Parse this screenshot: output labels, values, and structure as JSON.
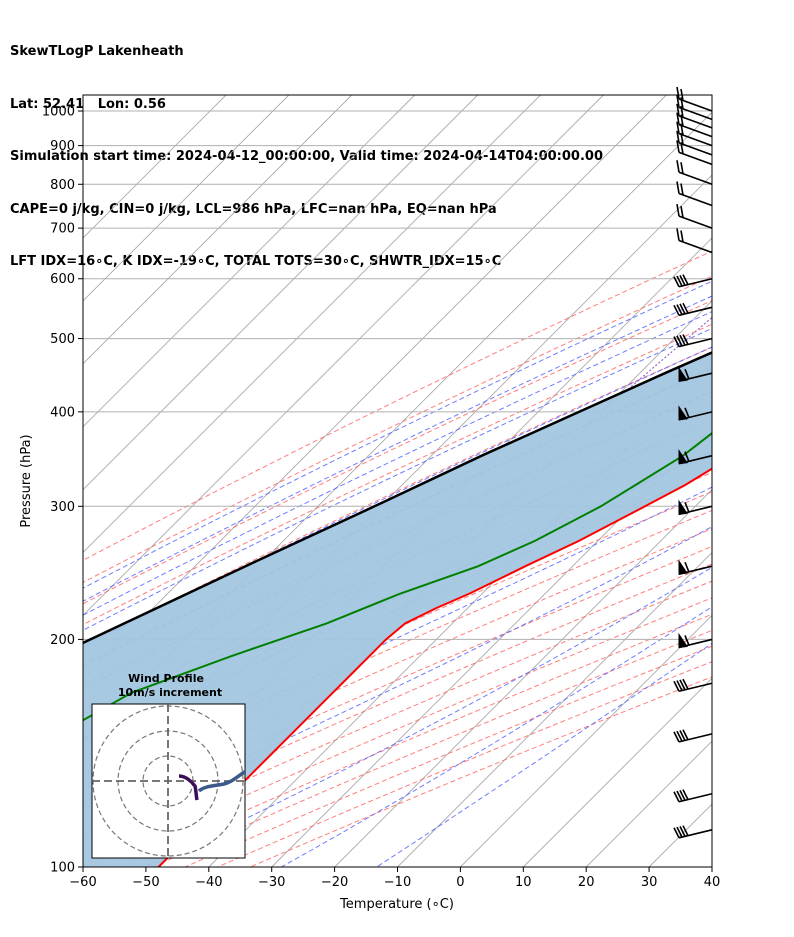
{
  "header": {
    "line1": "SkewTLogP Lakenheath",
    "line2": "Lat: 52.41   Lon: 0.56",
    "line3": "Simulation start time: 2024-04-12_00:00:00, Valid time: 2024-04-14T04:00:00.00",
    "line4": "CAPE=0 j/kg, CIN=0 j/kg, LCL=986 hPa, LFC=nan hPa, EQ=nan hPa",
    "line5": "LFT IDX=16∘C, K IDX=-19∘C, TOTAL TOTS=30∘C, SHWTR_IDX=15∘C"
  },
  "chart_data": {
    "type": "line",
    "title": "SkewTLogP Lakenheath",
    "xlabel": "Temperature (∘C)",
    "ylabel": "Pressure (hPa)",
    "xlim": [
      -60,
      40
    ],
    "ylim": [
      1050,
      100
    ],
    "yscale": "log",
    "x_ticks": [
      "−60",
      "−50",
      "−40",
      "−30",
      "−20",
      "−10",
      "0",
      "10",
      "20",
      "30",
      "40"
    ],
    "y_ticks": [
      "1000",
      "900",
      "800",
      "700",
      "600",
      "500",
      "400",
      "300",
      "200",
      "100"
    ],
    "y_tick_values": [
      1000,
      900,
      800,
      700,
      600,
      500,
      400,
      300,
      200,
      100
    ],
    "grid": true,
    "colors": {
      "temperature": "#ff0000",
      "dewpoint": "#008000",
      "parcel": "#000000",
      "shade": "#a3c6e0",
      "isotherm": "#aaaaaa",
      "dry_adiabat": "#ff6666",
      "moist_adiabat": "#5566ff",
      "mixing_ratio": "#9966cc"
    },
    "series": [
      {
        "role": "temperature",
        "pressure": [
          1015,
          1000,
          950,
          900,
          850,
          800,
          750,
          700,
          650,
          600,
          550,
          500,
          450,
          400,
          380,
          350,
          320,
          300,
          270,
          250,
          230,
          220,
          210,
          200,
          190,
          180,
          170,
          160,
          150,
          140,
          130,
          120,
          110,
          100
        ],
        "values": [
          4.8,
          6.0,
          6.2,
          6.0,
          6.0,
          6.0,
          7.0,
          6.5,
          4.0,
          0.0,
          -5.0,
          -9.5,
          -14.0,
          -18.5,
          -20.0,
          -22.0,
          -25.0,
          -28.0,
          -33.0,
          -37.5,
          -42.0,
          -45.0,
          -47.5,
          -48.0,
          -48.0,
          -48.0,
          -48.0,
          -48.0,
          -48.0,
          -48.0,
          -48.0,
          -48.0,
          -48.0,
          -48.0
        ]
      },
      {
        "role": "dewpoint",
        "pressure": [
          1010,
          1000,
          950,
          900,
          850,
          800,
          750,
          700,
          650,
          600,
          550,
          500,
          450,
          400,
          350,
          300,
          270,
          250,
          230,
          210,
          190,
          170,
          150,
          130,
          110,
          100
        ],
        "values": [
          2.0,
          2.0,
          -1.5,
          -6.0,
          -12.0,
          -22.0,
          -31.0,
          -33.0,
          -32.0,
          -35.0,
          -39.0,
          -34.0,
          -30.0,
          -28.0,
          -30.0,
          -35.0,
          -40.0,
          -45.0,
          -53.0,
          -60.0,
          -70.0,
          -80.0,
          -85.0,
          -92.0,
          -98.0,
          -100.0
        ]
      },
      {
        "role": "parcel",
        "pressure": [
          1015,
          1000,
          950,
          900,
          850,
          800,
          750,
          700,
          650,
          600,
          550,
          500,
          450,
          400,
          350,
          300,
          250,
          200,
          150,
          100
        ],
        "values": [
          4.8,
          3.5,
          -0.5,
          -3.0,
          -6.0,
          -10.0,
          -14.0,
          -18.0,
          -22.0,
          -27.5,
          -33.0,
          -39.0,
          -46.0,
          -53.5,
          -62.0,
          -71.0,
          -82.0,
          -95.0,
          -112.0,
          -136.0
        ]
      }
    ],
    "wind_barbs_pressure": [
      1000,
      975,
      950,
      925,
      900,
      875,
      850,
      800,
      750,
      700,
      650,
      600,
      550,
      500,
      450,
      400,
      350,
      300,
      250,
      200,
      175,
      150,
      125,
      112
    ]
  },
  "inset": {
    "title_line1": "Wind Profile",
    "title_line2": "10m/s increment"
  }
}
